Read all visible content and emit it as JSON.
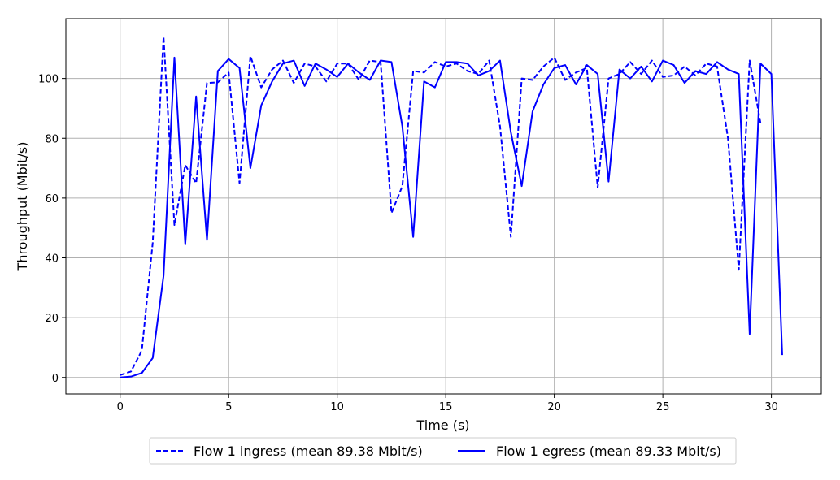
{
  "chart_data": {
    "type": "line",
    "xlabel": "Time (s)",
    "ylabel": "Throughput (Mbit/s)",
    "xlim": [
      -2.5,
      32.3
    ],
    "ylim": [
      -5.5,
      120
    ],
    "xticks": [
      0,
      5,
      10,
      15,
      20,
      25,
      30
    ],
    "yticks": [
      0,
      20,
      40,
      60,
      80,
      100
    ],
    "grid": true,
    "legend_position": "bottom-center-outside",
    "series": [
      {
        "name": "Flow 1 ingress (mean 89.38 Mbit/s)",
        "style": "dashed",
        "color": "#0000ff",
        "x": [
          0,
          0.5,
          1,
          1.5,
          2,
          2.5,
          3,
          3.5,
          4,
          4.5,
          5,
          5.5,
          6,
          6.5,
          7,
          7.5,
          8,
          8.5,
          9,
          9.5,
          10,
          10.5,
          11,
          11.5,
          12,
          12.5,
          13,
          13.5,
          14,
          14.5,
          15,
          15.5,
          16,
          16.5,
          17,
          17.5,
          18,
          18.5,
          19,
          19.5,
          20,
          20.5,
          21,
          21.5,
          22,
          22.5,
          23,
          23.5,
          24,
          24.5,
          25,
          25.5,
          26,
          26.5,
          27,
          27.5,
          28,
          28.5,
          29,
          29.5
        ],
        "y": [
          0.8,
          2,
          9,
          45,
          114,
          51,
          71,
          65,
          98.5,
          98.7,
          102,
          65,
          107.5,
          97,
          103,
          106,
          98.5,
          105,
          104,
          99,
          105,
          105,
          99.5,
          106,
          105.5,
          55,
          64,
          102.5,
          102,
          105.5,
          104,
          105,
          102.5,
          101.5,
          106,
          84,
          47,
          100,
          99.5,
          104,
          107,
          99.5,
          102,
          103.5,
          63.5,
          100,
          101.5,
          105.5,
          101.5,
          106,
          100.5,
          101,
          104,
          101,
          105,
          104,
          80,
          36,
          106,
          85
        ]
      },
      {
        "name": "Flow 1 egress (mean 89.33 Mbit/s)",
        "style": "solid",
        "color": "#0000ff",
        "x": [
          0,
          0.5,
          1,
          1.5,
          2,
          2.5,
          3,
          3.5,
          4,
          4.5,
          5,
          5.5,
          6,
          6.5,
          7,
          7.5,
          8,
          8.5,
          9,
          9.5,
          10,
          10.5,
          11,
          11.5,
          12,
          12.5,
          13,
          13.5,
          14,
          14.5,
          15,
          15.5,
          16,
          16.5,
          17,
          17.5,
          18,
          18.5,
          19,
          19.5,
          20,
          20.5,
          21,
          21.5,
          22,
          22.5,
          23,
          23.5,
          24,
          24.5,
          25,
          25.5,
          26,
          26.5,
          27,
          27.5,
          28,
          28.5,
          29,
          29.5,
          30,
          30.5
        ],
        "y": [
          0,
          0.3,
          1.5,
          6.5,
          34,
          107,
          44.5,
          94,
          46,
          102.5,
          106.5,
          103.5,
          70,
          91,
          99,
          105,
          106,
          97.5,
          105,
          103,
          100.5,
          105,
          102,
          99.5,
          106,
          105.5,
          84,
          47,
          99,
          97,
          105.5,
          105.5,
          105,
          101,
          102.5,
          106,
          82,
          64,
          89,
          98,
          103.5,
          104.5,
          98,
          104.5,
          101.5,
          65.5,
          103,
          100,
          104,
          99,
          106,
          104.5,
          98.5,
          102.5,
          101.5,
          105.5,
          103,
          101.5,
          14.5,
          105,
          101.5,
          7.5
        ]
      }
    ]
  }
}
